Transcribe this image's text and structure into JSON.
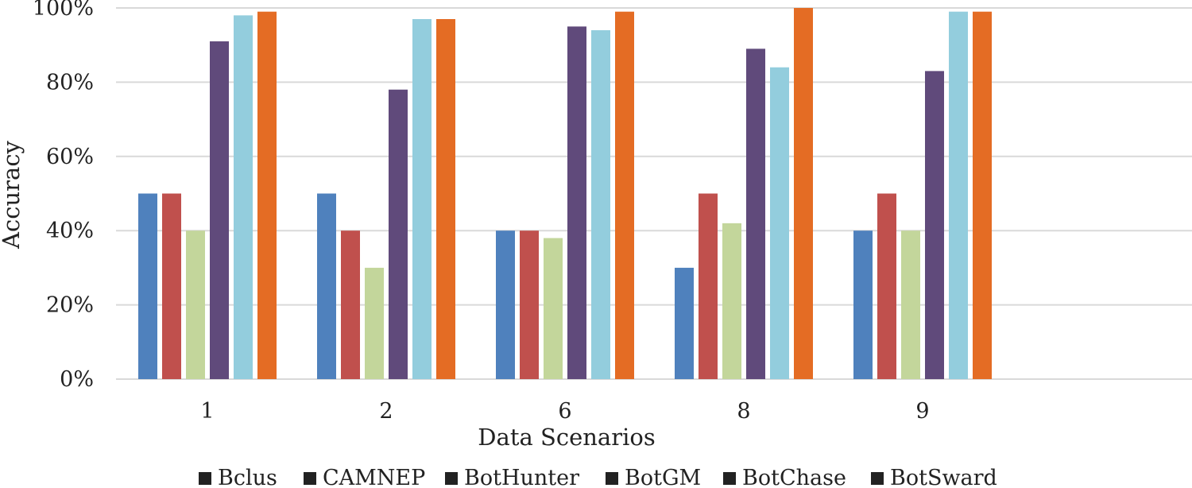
{
  "chart_data": {
    "type": "bar",
    "title": "",
    "xlabel": "Data Scenarios",
    "ylabel": "Accuracy",
    "categories": [
      "1",
      "2",
      "6",
      "8",
      "9"
    ],
    "ylim": [
      0,
      100
    ],
    "yticks": [
      "0%",
      "20%",
      "40%",
      "60%",
      "80%",
      "100%"
    ],
    "grid": true,
    "legend_position": "bottom",
    "series": [
      {
        "name": "Bclus",
        "color": "#4f81bd",
        "values": [
          50,
          50,
          40,
          30,
          40
        ]
      },
      {
        "name": "CAMNEP",
        "color": "#c0504d",
        "values": [
          50,
          40,
          40,
          50,
          50
        ]
      },
      {
        "name": "BotHunter",
        "color": "#c3d69b",
        "values": [
          40,
          30,
          38,
          42,
          40
        ]
      },
      {
        "name": "BotGM",
        "color": "#604a7b",
        "values": [
          91,
          78,
          95,
          89,
          83
        ]
      },
      {
        "name": "BotChase",
        "color": "#93cddd",
        "values": [
          98,
          97,
          94,
          84,
          99
        ]
      },
      {
        "name": "BotSward",
        "color": "#e46c24",
        "values": [
          99,
          97,
          99,
          100,
          99
        ]
      }
    ]
  }
}
